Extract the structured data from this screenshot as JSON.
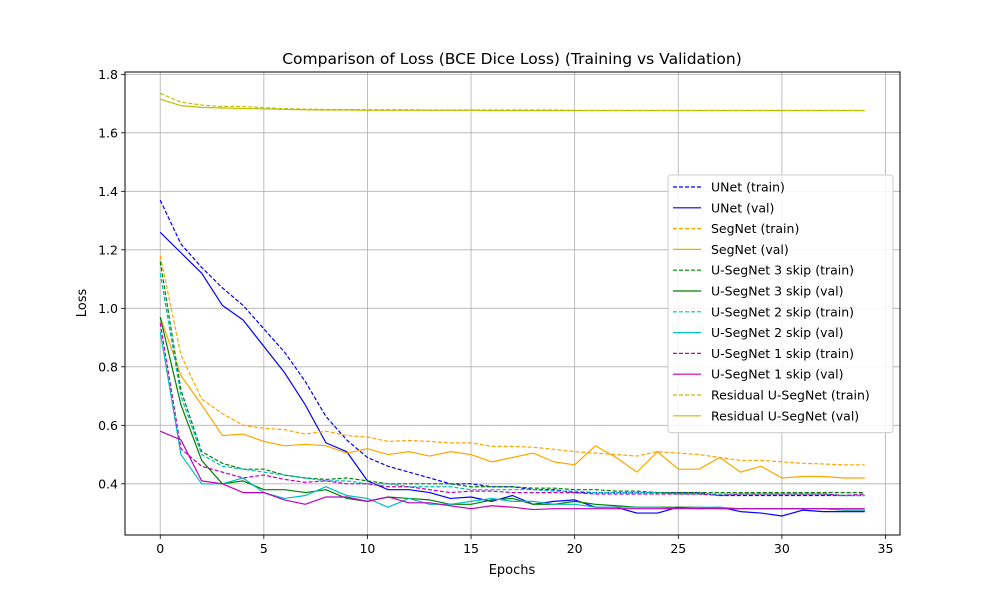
{
  "chart_data": {
    "type": "line",
    "title": "Comparison of Loss (BCE Dice Loss) (Training vs Validation)",
    "xlabel": "Epochs",
    "ylabel": "Loss",
    "xlim": [
      -1.7,
      35.7
    ],
    "ylim": [
      0.225,
      1.808
    ],
    "xticks": [
      0,
      5,
      10,
      15,
      20,
      25,
      30,
      35
    ],
    "yticks": [
      0.4,
      0.6,
      0.8,
      1.0,
      1.2,
      1.4,
      1.6,
      1.8
    ],
    "ytick_labels": [
      "0.4",
      "0.6",
      "0.8",
      "1.0",
      "1.2",
      "1.4",
      "1.6",
      "1.8"
    ],
    "grid": true,
    "legend_position": "center-right",
    "x": [
      0,
      1,
      2,
      3,
      4,
      5,
      6,
      7,
      8,
      9,
      10,
      11,
      12,
      13,
      14,
      15,
      16,
      17,
      18,
      19,
      20,
      21,
      22,
      23,
      24,
      25,
      26,
      27,
      28,
      29,
      30,
      31,
      32,
      33,
      34
    ],
    "series": [
      {
        "name": "UNet (train)",
        "color": "#0000ff",
        "dash": true,
        "values": [
          1.37,
          1.22,
          1.14,
          1.07,
          1.01,
          0.93,
          0.85,
          0.75,
          0.63,
          0.55,
          0.49,
          0.46,
          0.44,
          0.42,
          0.4,
          0.4,
          0.39,
          0.39,
          0.38,
          0.38,
          0.37,
          0.37,
          0.37,
          0.37,
          0.37,
          0.37,
          0.37,
          0.36,
          0.36,
          0.36,
          0.36,
          0.36,
          0.36,
          0.36,
          0.36
        ]
      },
      {
        "name": "UNet (val)",
        "color": "#0000ff",
        "dash": false,
        "values": [
          1.26,
          1.19,
          1.12,
          1.01,
          0.96,
          0.87,
          0.78,
          0.67,
          0.54,
          0.51,
          0.41,
          0.38,
          0.38,
          0.37,
          0.35,
          0.355,
          0.34,
          0.36,
          0.33,
          0.34,
          0.345,
          0.32,
          0.32,
          0.3,
          0.3,
          0.32,
          0.315,
          0.32,
          0.305,
          0.3,
          0.29,
          0.31,
          0.305,
          0.305,
          0.305
        ]
      },
      {
        "name": "SegNet (train)",
        "color": "#ffa500",
        "dash": true,
        "values": [
          1.18,
          0.84,
          0.69,
          0.64,
          0.6,
          0.59,
          0.585,
          0.57,
          0.58,
          0.565,
          0.56,
          0.545,
          0.548,
          0.545,
          0.54,
          0.54,
          0.528,
          0.528,
          0.525,
          0.518,
          0.51,
          0.505,
          0.5,
          0.495,
          0.51,
          0.505,
          0.5,
          0.49,
          0.48,
          0.48,
          0.475,
          0.47,
          0.468,
          0.465,
          0.465
        ]
      },
      {
        "name": "SegNet (val)",
        "color": "#ffa500",
        "dash": false,
        "values": [
          0.97,
          0.77,
          0.67,
          0.565,
          0.57,
          0.545,
          0.53,
          0.535,
          0.53,
          0.505,
          0.52,
          0.5,
          0.51,
          0.495,
          0.51,
          0.5,
          0.475,
          0.49,
          0.505,
          0.475,
          0.465,
          0.53,
          0.49,
          0.44,
          0.51,
          0.45,
          0.45,
          0.49,
          0.44,
          0.46,
          0.42,
          0.425,
          0.425,
          0.42,
          0.42
        ]
      },
      {
        "name": "U-SegNet 3 skip (train)",
        "color": "#008000",
        "dash": true,
        "values": [
          1.16,
          0.72,
          0.51,
          0.47,
          0.45,
          0.45,
          0.43,
          0.42,
          0.415,
          0.42,
          0.41,
          0.4,
          0.4,
          0.4,
          0.4,
          0.39,
          0.39,
          0.39,
          0.385,
          0.385,
          0.38,
          0.38,
          0.375,
          0.375,
          0.37,
          0.37,
          0.37,
          0.37,
          0.37,
          0.37,
          0.37,
          0.37,
          0.37,
          0.37,
          0.37
        ]
      },
      {
        "name": "U-SegNet 3 skip (val)",
        "color": "#008000",
        "dash": false,
        "values": [
          0.97,
          0.67,
          0.48,
          0.4,
          0.41,
          0.38,
          0.38,
          0.37,
          0.38,
          0.35,
          0.34,
          0.355,
          0.35,
          0.345,
          0.33,
          0.33,
          0.345,
          0.35,
          0.33,
          0.33,
          0.34,
          0.33,
          0.325,
          0.32,
          0.32,
          0.32,
          0.32,
          0.315,
          0.315,
          0.315,
          0.315,
          0.315,
          0.315,
          0.31,
          0.31
        ]
      },
      {
        "name": "U-SegNet 2 skip (train)",
        "color": "#00bfbf",
        "dash": true,
        "values": [
          1.12,
          0.7,
          0.5,
          0.46,
          0.45,
          0.44,
          0.43,
          0.42,
          0.41,
          0.41,
          0.4,
          0.4,
          0.39,
          0.39,
          0.39,
          0.38,
          0.38,
          0.38,
          0.38,
          0.375,
          0.375,
          0.37,
          0.37,
          0.37,
          0.37,
          0.365,
          0.365,
          0.365,
          0.365,
          0.365,
          0.365,
          0.365,
          0.365,
          0.36,
          0.36
        ]
      },
      {
        "name": "U-SegNet 2 skip (val)",
        "color": "#00bfbf",
        "dash": false,
        "values": [
          0.92,
          0.5,
          0.4,
          0.4,
          0.42,
          0.37,
          0.35,
          0.36,
          0.39,
          0.36,
          0.35,
          0.32,
          0.35,
          0.33,
          0.33,
          0.34,
          0.35,
          0.34,
          0.34,
          0.33,
          0.33,
          0.32,
          0.32,
          0.32,
          0.32,
          0.315,
          0.32,
          0.32,
          0.315,
          0.315,
          0.315,
          0.315,
          0.315,
          0.31,
          0.31
        ]
      },
      {
        "name": "U-SegNet 1 skip (train)",
        "color": "#bf00bf",
        "dash": true,
        "values": [
          0.95,
          0.52,
          0.46,
          0.44,
          0.42,
          0.43,
          0.415,
          0.405,
          0.41,
          0.4,
          0.4,
          0.39,
          0.39,
          0.38,
          0.37,
          0.375,
          0.375,
          0.37,
          0.37,
          0.37,
          0.37,
          0.365,
          0.365,
          0.365,
          0.365,
          0.365,
          0.365,
          0.36,
          0.365,
          0.365,
          0.365,
          0.365,
          0.365,
          0.36,
          0.365
        ]
      },
      {
        "name": "U-SegNet 1 skip (val)",
        "color": "#bf00bf",
        "dash": false,
        "values": [
          0.58,
          0.55,
          0.41,
          0.4,
          0.37,
          0.37,
          0.345,
          0.33,
          0.355,
          0.355,
          0.34,
          0.355,
          0.335,
          0.335,
          0.325,
          0.315,
          0.325,
          0.32,
          0.312,
          0.315,
          0.315,
          0.315,
          0.315,
          0.315,
          0.315,
          0.315,
          0.315,
          0.315,
          0.315,
          0.315,
          0.315,
          0.315,
          0.315,
          0.315,
          0.315
        ]
      },
      {
        "name": "Residual U-SegNet (train)",
        "color": "#bfbf00",
        "dash": true,
        "values": [
          1.735,
          1.705,
          1.695,
          1.69,
          1.69,
          1.686,
          1.683,
          1.681,
          1.68,
          1.68,
          1.679,
          1.679,
          1.679,
          1.678,
          1.678,
          1.678,
          1.678,
          1.678,
          1.678,
          1.678,
          1.677,
          1.677,
          1.677,
          1.677,
          1.677,
          1.677,
          1.677,
          1.677,
          1.677,
          1.677,
          1.677,
          1.677,
          1.677,
          1.677,
          1.677
        ]
      },
      {
        "name": "Residual U-SegNet (val)",
        "color": "#bfbf00",
        "dash": false,
        "values": [
          1.715,
          1.693,
          1.687,
          1.685,
          1.683,
          1.682,
          1.68,
          1.679,
          1.678,
          1.678,
          1.677,
          1.677,
          1.677,
          1.677,
          1.677,
          1.677,
          1.676,
          1.676,
          1.676,
          1.676,
          1.676,
          1.676,
          1.676,
          1.676,
          1.676,
          1.676,
          1.676,
          1.676,
          1.676,
          1.676,
          1.676,
          1.676,
          1.676,
          1.676,
          1.676
        ]
      }
    ]
  }
}
